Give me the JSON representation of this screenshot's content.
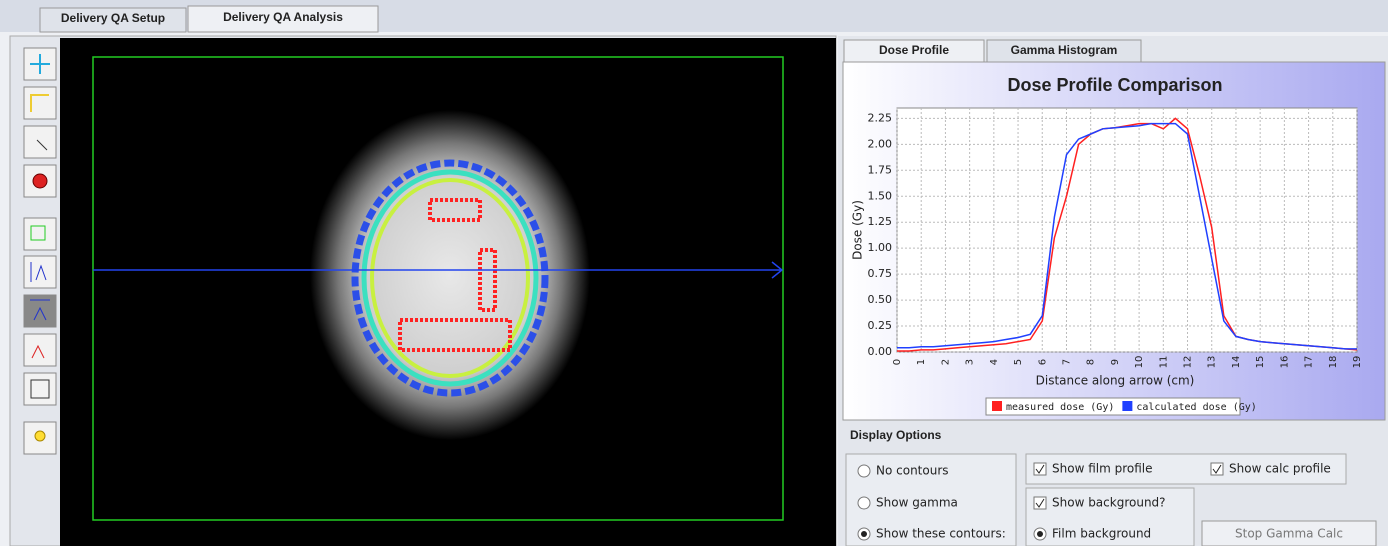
{
  "tabs": [
    "Delivery QA Setup",
    "Delivery QA Analysis"
  ],
  "chart_tabs": [
    "Dose Profile",
    "Gamma Histogram"
  ],
  "chart_data": {
    "type": "line",
    "title": "Dose Profile Comparison",
    "x_label": "Distance along arrow (cm)",
    "y_label": "Dose (Gy)",
    "x": [
      0,
      0.5,
      1,
      1.5,
      2,
      2.5,
      3,
      3.5,
      4,
      4.5,
      5,
      5.5,
      6,
      6.5,
      7,
      7.5,
      8,
      8.5,
      9,
      9.5,
      10,
      10.5,
      11,
      11.5,
      12,
      12.5,
      13,
      13.5,
      14,
      14.5,
      15,
      15.5,
      16,
      16.5,
      17,
      17.5,
      18,
      18.5,
      19
    ],
    "series": [
      {
        "name": "measured dose (Gy)",
        "color": "#ff2020",
        "values": [
          0.01,
          0.01,
          0.02,
          0.02,
          0.03,
          0.04,
          0.05,
          0.06,
          0.07,
          0.08,
          0.1,
          0.12,
          0.3,
          1.1,
          1.5,
          2.0,
          2.1,
          2.15,
          2.16,
          2.18,
          2.2,
          2.2,
          2.15,
          2.25,
          2.15,
          1.7,
          1.2,
          0.35,
          0.15,
          0.12,
          0.1,
          0.09,
          0.08,
          0.07,
          0.06,
          0.05,
          0.04,
          0.03,
          0.02
        ]
      },
      {
        "name": "calculated dose (Gy)",
        "color": "#2040ff",
        "values": [
          0.04,
          0.04,
          0.05,
          0.05,
          0.06,
          0.07,
          0.08,
          0.09,
          0.1,
          0.12,
          0.14,
          0.17,
          0.35,
          1.3,
          1.9,
          2.05,
          2.1,
          2.15,
          2.16,
          2.17,
          2.18,
          2.2,
          2.2,
          2.2,
          2.1,
          1.5,
          0.9,
          0.3,
          0.15,
          0.12,
          0.1,
          0.09,
          0.08,
          0.07,
          0.06,
          0.05,
          0.04,
          0.03,
          0.03
        ]
      }
    ],
    "xlim": [
      0,
      19
    ],
    "ylim": [
      0,
      2.35
    ],
    "xticks": [
      0,
      1,
      2,
      3,
      4,
      5,
      6,
      7,
      8,
      9,
      10,
      11,
      12,
      13,
      14,
      15,
      16,
      17,
      18,
      19
    ],
    "yticks": [
      {
        "value": 0,
        "label": "0.00"
      },
      0.25,
      {
        "value": 0.5,
        "label": "0.50"
      },
      0.75,
      {
        "value": 1,
        "label": "1.00"
      },
      1.25,
      {
        "value": 1.5,
        "label": "1.50"
      },
      1.75,
      {
        "value": 2,
        "label": "2.00"
      },
      2.25
    ],
    "grid": true
  },
  "display_options": {
    "title": "Display Options",
    "radios": [
      "No contours",
      "Show gamma",
      "Show these contours:"
    ],
    "show_film_profile": "Show film profile",
    "show_calc_profile": "Show calc profile",
    "show_background": "Show background?",
    "film_background": "Film background",
    "button": "Stop Gamma Calc"
  }
}
